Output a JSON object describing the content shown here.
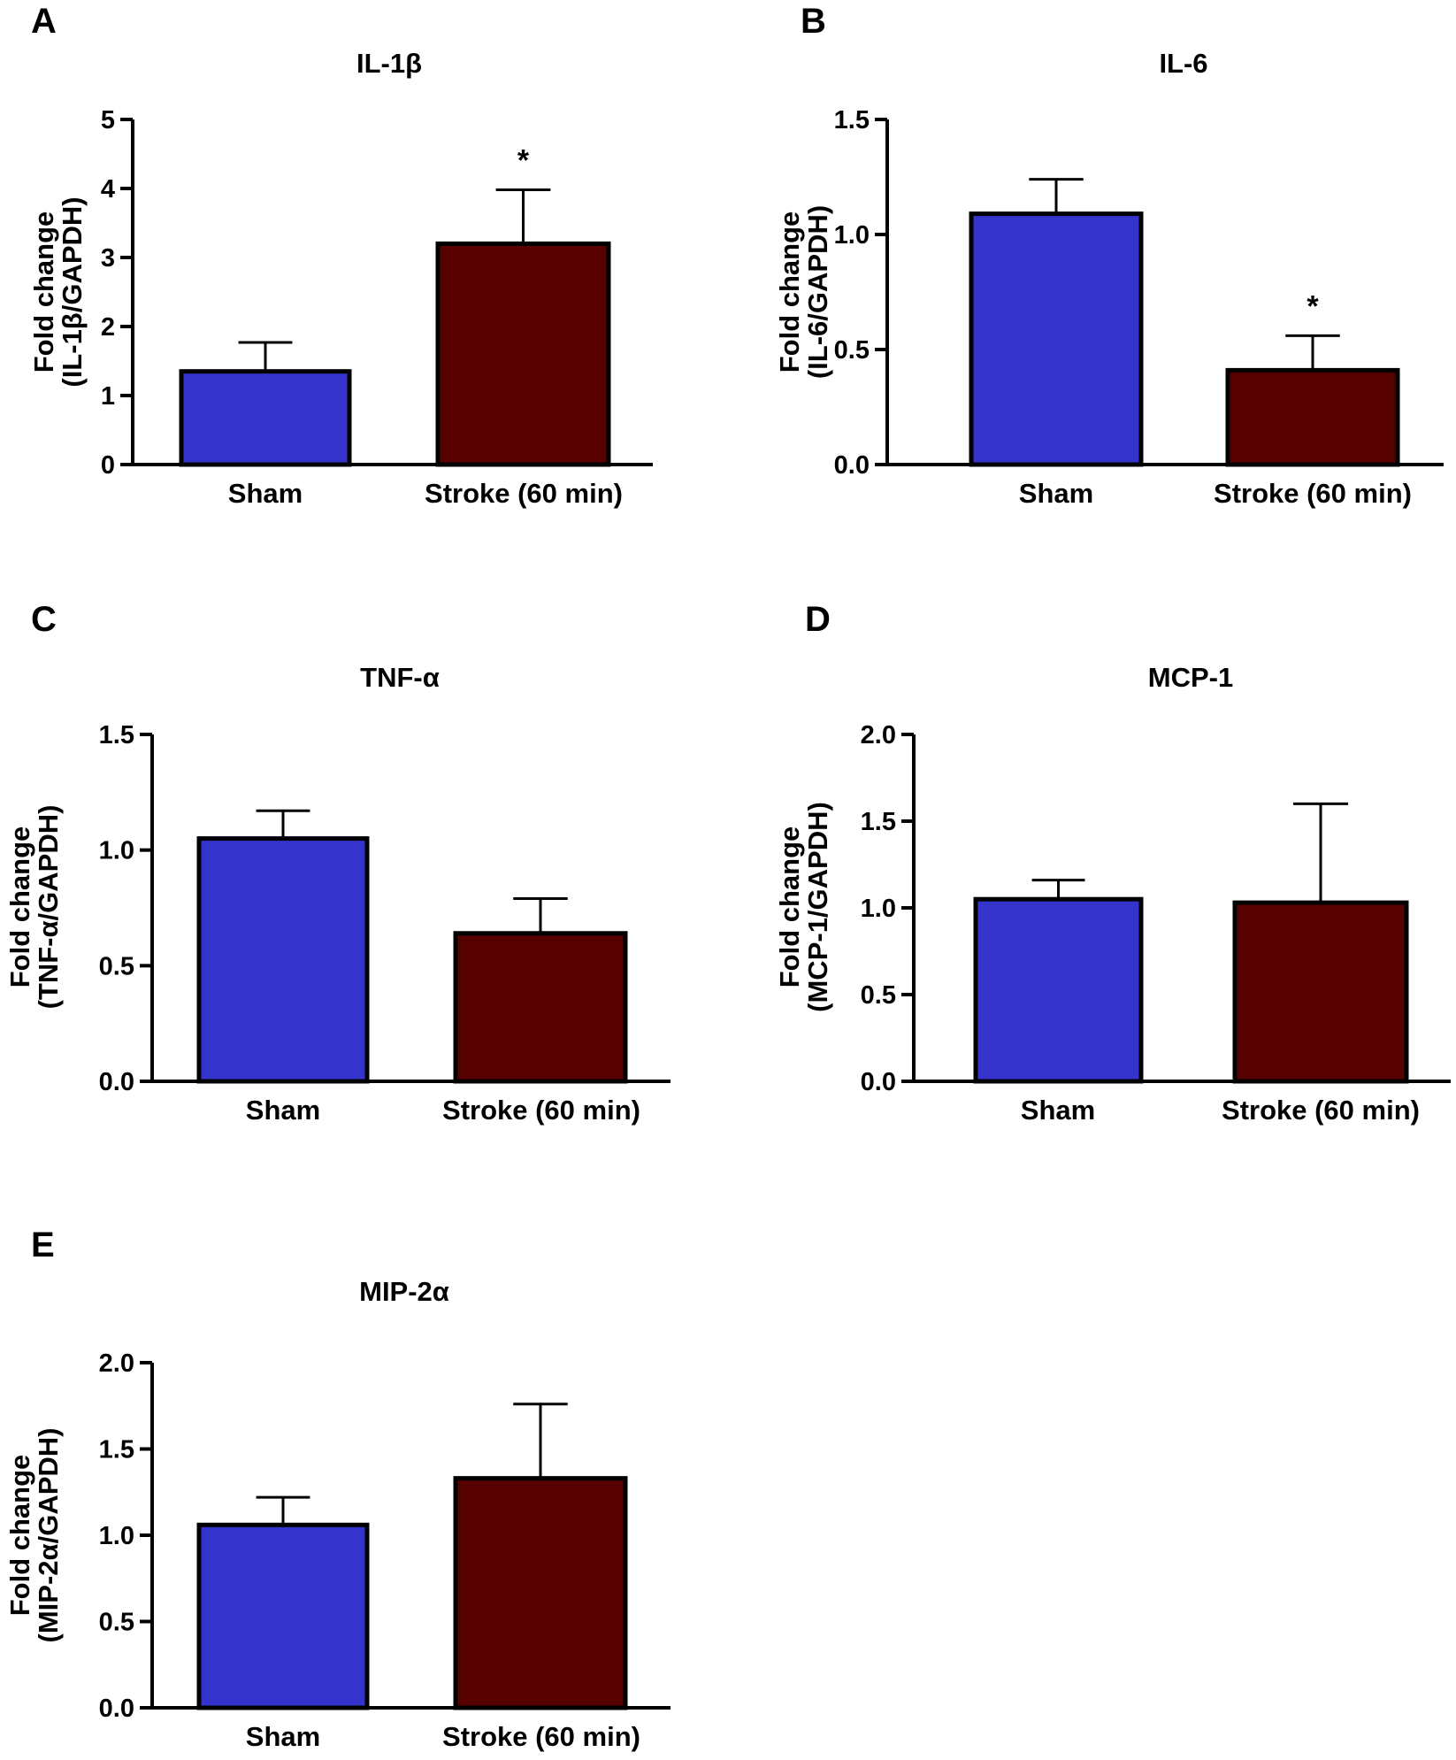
{
  "chart_data": [
    {
      "type": "bar",
      "panel": "A",
      "title": "IL-1β",
      "ylabel": [
        "Fold change",
        "(IL-1β/GAPDH)"
      ],
      "categories": [
        "Sham",
        "Stroke (60 min)"
      ],
      "values": [
        1.35,
        3.2
      ],
      "errors": [
        0.42,
        0.78
      ],
      "significance": [
        "",
        "*"
      ],
      "ylim": [
        0,
        5
      ],
      "yticks": [
        0,
        1,
        2,
        3,
        4,
        5
      ],
      "ytick_labels": [
        "0",
        "1",
        "2",
        "3",
        "4",
        "5"
      ]
    },
    {
      "type": "bar",
      "panel": "B",
      "title": "IL-6",
      "ylabel": [
        "Fold change",
        "(IL-6/GAPDH)"
      ],
      "categories": [
        "Sham",
        "Stroke (60 min)"
      ],
      "values": [
        1.09,
        0.41
      ],
      "errors": [
        0.15,
        0.15
      ],
      "significance": [
        "",
        "*"
      ],
      "ylim": [
        0,
        1.5
      ],
      "yticks": [
        0,
        0.5,
        1.0,
        1.5
      ],
      "ytick_labels": [
        "0.0",
        "0.5",
        "1.0",
        "1.5"
      ]
    },
    {
      "type": "bar",
      "panel": "C",
      "title": "TNF-α",
      "ylabel": [
        "Fold change",
        "(TNF-α/GAPDH)"
      ],
      "categories": [
        "Sham",
        "Stroke (60 min)"
      ],
      "values": [
        1.05,
        0.64
      ],
      "errors": [
        0.12,
        0.15
      ],
      "significance": [
        "",
        ""
      ],
      "ylim": [
        0,
        1.5
      ],
      "yticks": [
        0,
        0.5,
        1.0,
        1.5
      ],
      "ytick_labels": [
        "0.0",
        "0.5",
        "1.0",
        "1.5"
      ]
    },
    {
      "type": "bar",
      "panel": "D",
      "title": "MCP-1",
      "ylabel": [
        "Fold change",
        "(MCP-1/GAPDH)"
      ],
      "categories": [
        "Sham",
        "Stroke (60 min)"
      ],
      "values": [
        1.05,
        1.03
      ],
      "errors": [
        0.11,
        0.57
      ],
      "significance": [
        "",
        ""
      ],
      "ylim": [
        0,
        2.0
      ],
      "yticks": [
        0,
        0.5,
        1.0,
        1.5,
        2.0
      ],
      "ytick_labels": [
        "0.0",
        "0.5",
        "1.0",
        "1.5",
        "2.0"
      ]
    },
    {
      "type": "bar",
      "panel": "E",
      "title": "MIP-2α",
      "ylabel": [
        "Fold change",
        "(MIP-2α/GAPDH)"
      ],
      "categories": [
        "Sham",
        "Stroke (60 min)"
      ],
      "values": [
        1.06,
        1.33
      ],
      "errors": [
        0.16,
        0.43
      ],
      "significance": [
        "",
        ""
      ],
      "ylim": [
        0,
        2.0
      ],
      "yticks": [
        0,
        0.5,
        1.0,
        1.5,
        2.0
      ],
      "ytick_labels": [
        "0.0",
        "0.5",
        "1.0",
        "1.5",
        "2.0"
      ]
    }
  ],
  "colors": {
    "sham": "#3434cc",
    "stroke": "#570000",
    "axis": "#000000"
  }
}
